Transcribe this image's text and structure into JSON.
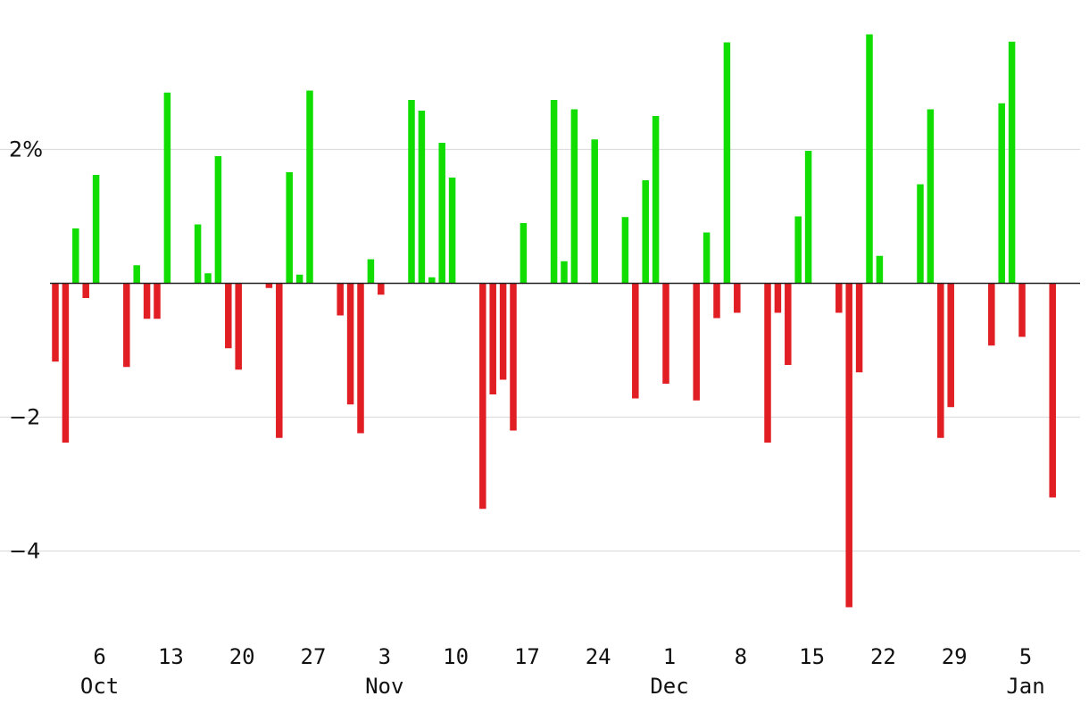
{
  "chart_data": {
    "type": "bar",
    "title": "",
    "xlabel": "",
    "ylabel": "",
    "x_axis_type": "date",
    "x_range": [
      "2023-10-02",
      "2024-01-08"
    ],
    "ylim": [
      -5.3,
      3.9
    ],
    "y_ticks": [
      {
        "value": 2,
        "label": "2%"
      },
      {
        "value": -2,
        "label": "−2"
      },
      {
        "value": -4,
        "label": "−4"
      }
    ],
    "x_tick_labels": [
      {
        "date": "2023-10-06",
        "label": "6",
        "month": "Oct"
      },
      {
        "date": "2023-10-13",
        "label": "13"
      },
      {
        "date": "2023-10-20",
        "label": "20"
      },
      {
        "date": "2023-10-27",
        "label": "27"
      },
      {
        "date": "2023-11-03",
        "label": "3",
        "month": "Nov"
      },
      {
        "date": "2023-11-10",
        "label": "10"
      },
      {
        "date": "2023-11-17",
        "label": "17"
      },
      {
        "date": "2023-11-24",
        "label": "24"
      },
      {
        "date": "2023-12-01",
        "label": "1",
        "month": "Dec"
      },
      {
        "date": "2023-12-08",
        "label": "8"
      },
      {
        "date": "2023-12-15",
        "label": "15"
      },
      {
        "date": "2023-12-22",
        "label": "22"
      },
      {
        "date": "2023-12-29",
        "label": "29"
      },
      {
        "date": "2024-01-05",
        "label": "5",
        "month": "Jan"
      }
    ],
    "grid": true,
    "colors": {
      "positive": "#11dd00",
      "negative": "#e01e24",
      "grid": "#dddddd",
      "zero_line": "#222222"
    },
    "series": [
      {
        "x": [
          "2023-10-02",
          "2023-10-03",
          "2023-10-04",
          "2023-10-05",
          "2023-10-06",
          "2023-10-09",
          "2023-10-10",
          "2023-10-11",
          "2023-10-12",
          "2023-10-13",
          "2023-10-16",
          "2023-10-17",
          "2023-10-18",
          "2023-10-19",
          "2023-10-20",
          "2023-10-23",
          "2023-10-24",
          "2023-10-25",
          "2023-10-26",
          "2023-10-27",
          "2023-10-30",
          "2023-10-31",
          "2023-11-01",
          "2023-11-02",
          "2023-11-03",
          "2023-11-06",
          "2023-11-07",
          "2023-11-08",
          "2023-11-09",
          "2023-11-10",
          "2023-11-13",
          "2023-11-14",
          "2023-11-15",
          "2023-11-16",
          "2023-11-17",
          "2023-11-20",
          "2023-11-21",
          "2023-11-22",
          "2023-11-24",
          "2023-11-27",
          "2023-11-28",
          "2023-11-29",
          "2023-11-30",
          "2023-12-01",
          "2023-12-04",
          "2023-12-05",
          "2023-12-06",
          "2023-12-07",
          "2023-12-08",
          "2023-12-11",
          "2023-12-12",
          "2023-12-13",
          "2023-12-14",
          "2023-12-15",
          "2023-12-18",
          "2023-12-19",
          "2023-12-20",
          "2023-12-21",
          "2023-12-22",
          "2023-12-26",
          "2023-12-27",
          "2023-12-28",
          "2023-12-29",
          "2024-01-02",
          "2024-01-03",
          "2024-01-04",
          "2024-01-05",
          "2024-01-08"
        ],
        "values": [
          -1.17,
          -2.38,
          0.82,
          -0.22,
          1.62,
          -1.25,
          0.27,
          -0.53,
          -0.53,
          2.85,
          0.88,
          0.15,
          1.9,
          -0.97,
          -1.29,
          -0.07,
          -2.31,
          1.66,
          0.13,
          2.88,
          -0.48,
          -1.81,
          -2.24,
          0.36,
          -0.17,
          2.74,
          2.58,
          0.09,
          2.1,
          1.58,
          -3.37,
          -1.66,
          -1.44,
          -2.2,
          0.9,
          2.74,
          0.33,
          2.6,
          2.15,
          0.99,
          -1.72,
          1.54,
          2.5,
          -1.5,
          -1.75,
          0.76,
          -0.52,
          3.6,
          -0.44,
          -2.38,
          -0.44,
          -1.22,
          1.0,
          1.98,
          -0.44,
          -4.84,
          -1.33,
          3.72,
          0.41,
          1.48,
          2.6,
          -2.31,
          -1.85,
          -0.93,
          2.69,
          3.61,
          -0.8,
          -3.2
        ]
      }
    ]
  }
}
